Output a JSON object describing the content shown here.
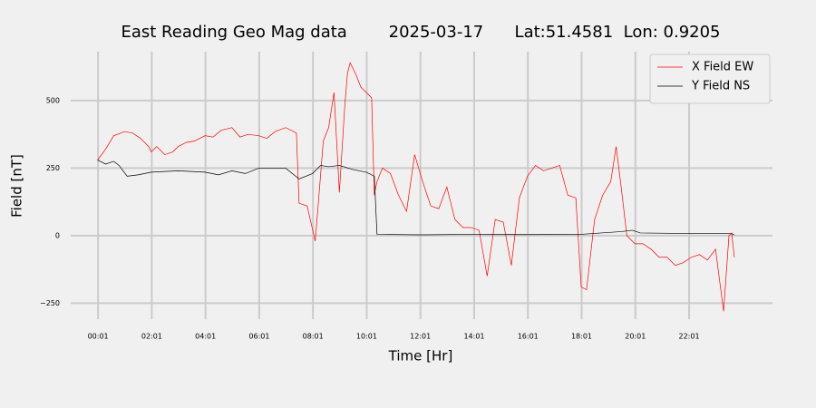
{
  "chart_data": {
    "type": "line",
    "title": "East Reading Geo Mag data        2025-03-17      Lat:51.4581  Lon: 0.9205",
    "x_label": "Time  [Hr]",
    "y_label": "Field  [nT]",
    "xlim": [
      -1.0,
      25.12
    ],
    "ylim": [
      -309,
      681
    ],
    "xticks": [
      {
        "value": 0.0167,
        "label": "00:01"
      },
      {
        "value": 2.0167,
        "label": "02:01"
      },
      {
        "value": 4.0167,
        "label": "04:01"
      },
      {
        "value": 6.0167,
        "label": "06:01"
      },
      {
        "value": 8.0167,
        "label": "08:01"
      },
      {
        "value": 10.0167,
        "label": "10:01"
      },
      {
        "value": 12.0167,
        "label": "12:01"
      },
      {
        "value": 14.0167,
        "label": "14:01"
      },
      {
        "value": 16.0167,
        "label": "16:01"
      },
      {
        "value": 18.0167,
        "label": "18:01"
      },
      {
        "value": 20.0167,
        "label": "20:01"
      },
      {
        "value": 22.0167,
        "label": "22:01"
      }
    ],
    "yticks": [
      {
        "value": -250,
        "label": "−250"
      },
      0,
      250,
      500
    ],
    "grid": true,
    "legend": "upper right",
    "series": [
      {
        "name": "X Field EW",
        "color": "#ff0000",
        "x": [
          0.0,
          0.3,
          0.6,
          1.0,
          1.3,
          1.6,
          1.9,
          2.0,
          2.2,
          2.5,
          2.8,
          3.0,
          3.3,
          3.6,
          4.0,
          4.3,
          4.6,
          5.0,
          5.3,
          5.6,
          6.0,
          6.3,
          6.6,
          7.0,
          7.4,
          7.5,
          7.8,
          8.1,
          8.2,
          8.4,
          8.6,
          8.8,
          9.0,
          9.2,
          9.3,
          9.4,
          9.6,
          9.8,
          10.0,
          10.2,
          10.3,
          10.4,
          10.6,
          10.9,
          11.2,
          11.5,
          11.8,
          12.1,
          12.4,
          12.7,
          13.0,
          13.3,
          13.6,
          13.9,
          14.2,
          14.5,
          14.8,
          15.1,
          15.4,
          15.7,
          16.0,
          16.3,
          16.6,
          16.9,
          17.2,
          17.5,
          17.8,
          18.0,
          18.2,
          18.5,
          18.8,
          19.1,
          19.3,
          19.5,
          19.7,
          20.0,
          20.3,
          20.6,
          20.9,
          21.2,
          21.5,
          21.8,
          22.1,
          22.4,
          22.7,
          23.0,
          23.3,
          23.5,
          23.6,
          23.7
        ],
        "values": [
          280,
          320,
          370,
          385,
          380,
          360,
          330,
          310,
          330,
          300,
          310,
          330,
          345,
          350,
          370,
          365,
          390,
          400,
          365,
          375,
          370,
          360,
          385,
          400,
          380,
          120,
          110,
          -20,
          100,
          350,
          400,
          530,
          160,
          480,
          600,
          640,
          600,
          550,
          530,
          510,
          150,
          200,
          250,
          230,
          150,
          90,
          300,
          200,
          110,
          100,
          180,
          60,
          30,
          30,
          20,
          -150,
          60,
          50,
          -110,
          140,
          220,
          260,
          240,
          250,
          260,
          150,
          140,
          -190,
          -200,
          60,
          150,
          200,
          330,
          170,
          0,
          -30,
          -30,
          -50,
          -80,
          -80,
          -110,
          -100,
          -80,
          -70,
          -90,
          -50,
          -280,
          0,
          10,
          -80
        ]
      },
      {
        "name": "Y Field NS",
        "color": "#000000",
        "x": [
          0.0,
          0.3,
          0.6,
          0.8,
          1.1,
          1.5,
          2.0,
          3.0,
          4.0,
          4.5,
          5.0,
          5.5,
          6.0,
          7.0,
          7.5,
          8.0,
          8.3,
          8.6,
          9.0,
          9.5,
          10.0,
          10.3,
          10.4,
          12.0,
          14.0,
          16.0,
          18.0,
          19.5,
          19.9,
          20.2,
          22.0,
          23.5,
          23.7
        ],
        "values": [
          280,
          265,
          275,
          260,
          220,
          225,
          235,
          240,
          235,
          225,
          240,
          230,
          250,
          250,
          210,
          230,
          260,
          255,
          260,
          245,
          235,
          220,
          5,
          3,
          5,
          4,
          5,
          15,
          20,
          10,
          8,
          8,
          5
        ]
      }
    ]
  }
}
